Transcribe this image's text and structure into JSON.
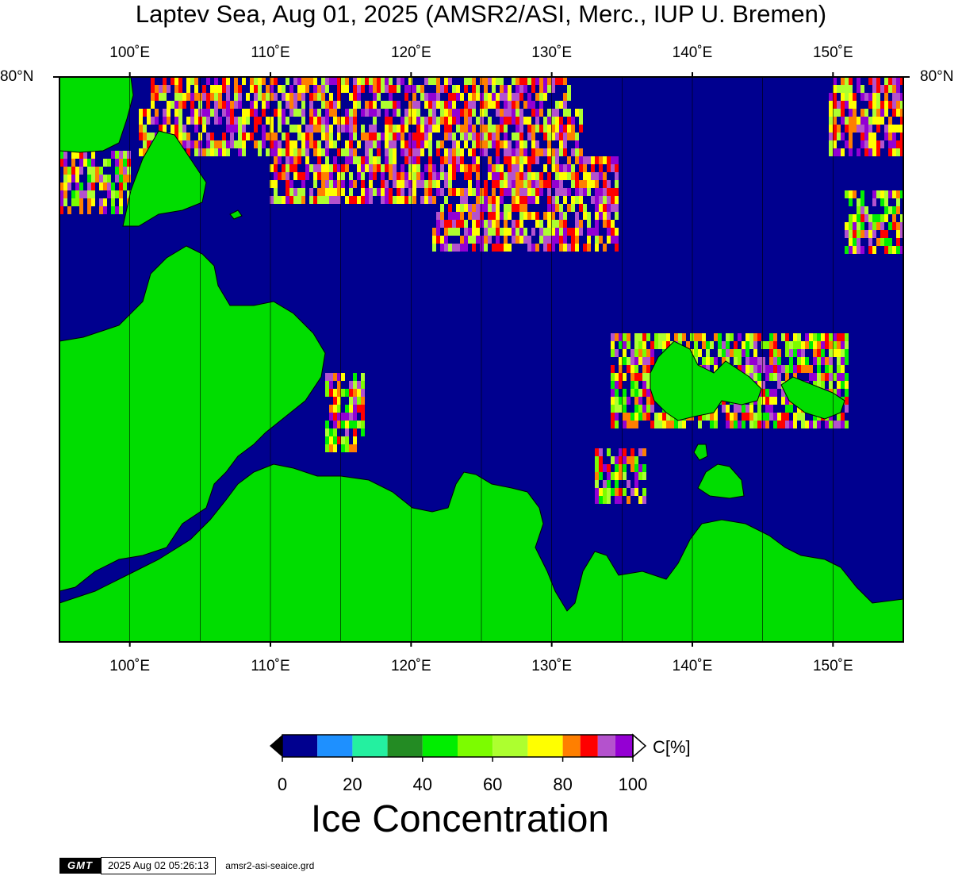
{
  "title": "Laptev Sea, Aug 01, 2025 (AMSR2/ASI, Merc., IUP U. Bremen)",
  "map": {
    "projection": "Mercator",
    "lon_range": [
      95,
      155
    ],
    "lat_top_label": "80°N",
    "lon_ticks": [
      {
        "lon": 100,
        "label": "100˚E"
      },
      {
        "lon": 110,
        "label": "110˚E"
      },
      {
        "lon": 120,
        "label": "120˚E"
      },
      {
        "lon": 130,
        "label": "130˚E"
      },
      {
        "lon": 140,
        "label": "140˚E"
      },
      {
        "lon": 150,
        "label": "150˚E"
      }
    ],
    "grid_lon_step": 5,
    "ocean_color": "#00008f",
    "land_color": "#00dd00"
  },
  "colorbar": {
    "unit": "C[%]",
    "title": "Ice Concentration",
    "ticks": [
      "0",
      "20",
      "40",
      "60",
      "80",
      "100"
    ],
    "colors": [
      "#00008f",
      "#1e90ff",
      "#24f0a0",
      "#238b23",
      "#00ee00",
      "#7cfc00",
      "#adff2f",
      "#ffff00",
      "#ff7f00",
      "#ff0000",
      "#b452cd",
      "#9400d3"
    ],
    "boundaries": [
      0,
      10,
      20,
      30,
      40,
      50,
      60,
      70,
      80,
      85,
      90,
      95,
      100
    ]
  },
  "footer": {
    "logo": "GMT",
    "timestamp": "2025 Aug 02 05:26:13",
    "grid_file": "amsr2-asi-seaice.grd"
  }
}
